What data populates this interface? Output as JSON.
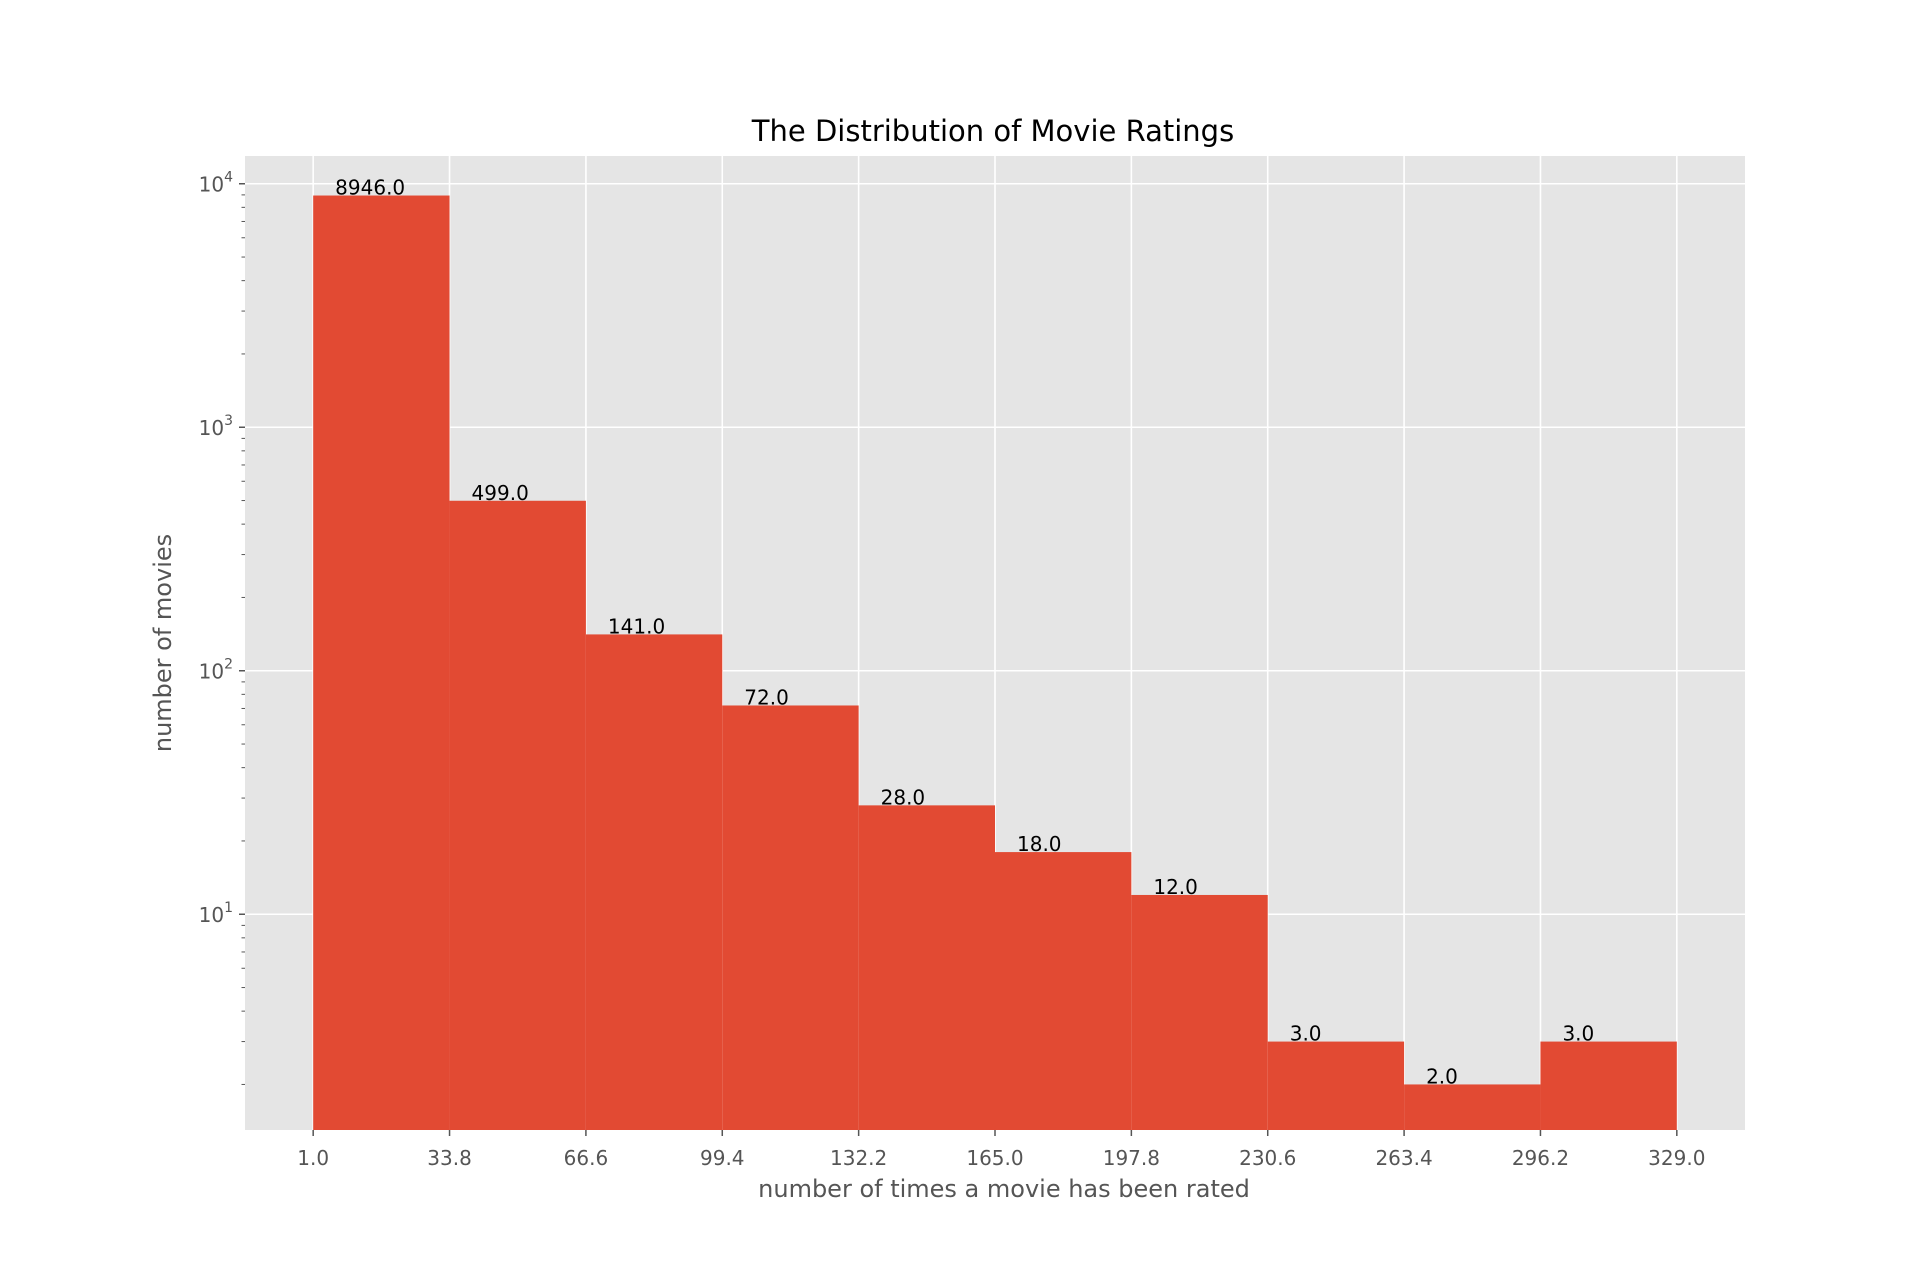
{
  "chart_data": {
    "type": "bar",
    "title": "The Distribution of Movie Ratings",
    "xlabel": "number of times a movie has been rated",
    "ylabel": "number of movies",
    "y_scale": "log",
    "ylim": [
      1.3,
      13000
    ],
    "xlim": [
      -15.4,
      345.4
    ],
    "bin_edges": [
      1.0,
      33.8,
      66.6,
      99.4,
      132.2,
      165.0,
      197.8,
      230.6,
      263.4,
      296.2,
      329.0
    ],
    "x_tick_labels": [
      "1.0",
      "33.8",
      "66.6",
      "99.4",
      "132.2",
      "165.0",
      "197.8",
      "230.6",
      "263.4",
      "296.2",
      "329.0"
    ],
    "y_ticks": [
      {
        "value": 10,
        "base": "10",
        "exp": "1"
      },
      {
        "value": 100,
        "base": "10",
        "exp": "2"
      },
      {
        "value": 1000,
        "base": "10",
        "exp": "3"
      },
      {
        "value": 10000,
        "base": "10",
        "exp": "4"
      }
    ],
    "values": [
      8946.0,
      499.0,
      141.0,
      72.0,
      28.0,
      18.0,
      12.0,
      3.0,
      2.0,
      3.0
    ],
    "value_labels": [
      "8946.0",
      "499.0",
      "141.0",
      "72.0",
      "28.0",
      "18.0",
      "12.0",
      "3.0",
      "2.0",
      "3.0"
    ],
    "grid": true,
    "style": {
      "background": "#e5e5e5",
      "bar_color": "#e24a33",
      "grid_color": "#ffffff"
    }
  }
}
